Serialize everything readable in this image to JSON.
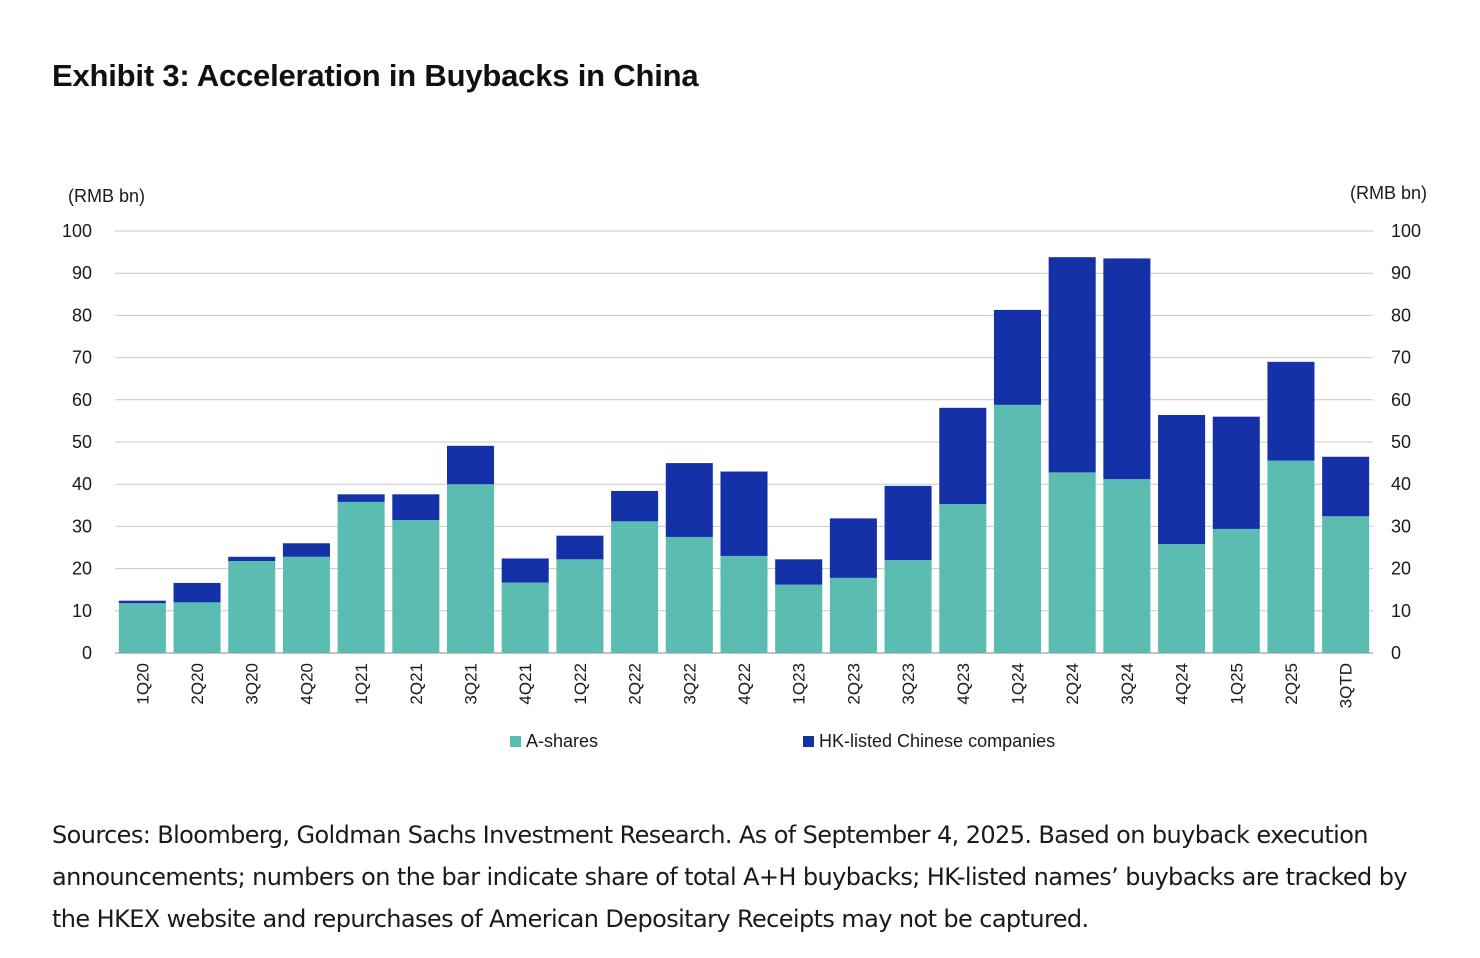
{
  "title": "Exhibit 3: Acceleration in Buybacks in China",
  "footnote": "Sources: Bloomberg, Goldman Sachs Investment Research. As of September 4, 2025. Based on buyback execution announcements; numbers on the bar indicate share of total A+H buybacks; HK-listed names’ buybacks are tracked by the HKEX website and repurchases of American Depositary Receipts may not be captured.",
  "chart_data": {
    "type": "bar",
    "stacked": true,
    "categories": [
      "1Q20",
      "2Q20",
      "3Q20",
      "4Q20",
      "1Q21",
      "2Q21",
      "3Q21",
      "4Q21",
      "1Q22",
      "2Q22",
      "3Q22",
      "4Q22",
      "1Q23",
      "2Q23",
      "3Q23",
      "4Q23",
      "1Q24",
      "2Q24",
      "3Q24",
      "4Q24",
      "1Q25",
      "2Q25",
      "3QTD"
    ],
    "series": [
      {
        "name": "A-shares",
        "color": "#5bbdb2",
        "values": [
          11.8,
          12.0,
          21.8,
          22.8,
          35.8,
          31.5,
          40.0,
          16.7,
          22.2,
          31.2,
          27.5,
          23.0,
          16.2,
          17.8,
          22.0,
          35.3,
          58.8,
          42.8,
          41.2,
          25.8,
          29.4,
          45.6,
          32.4
        ]
      },
      {
        "name": "HK-listed Chinese companies",
        "color": "#1531a8",
        "values": [
          0.6,
          4.6,
          1.0,
          3.2,
          1.8,
          6.1,
          9.1,
          5.7,
          5.6,
          7.2,
          17.5,
          20.0,
          6.0,
          14.1,
          17.6,
          22.8,
          22.5,
          51.0,
          52.3,
          30.6,
          26.6,
          23.4,
          14.1
        ]
      }
    ],
    "y_left": {
      "label": "(RMB bn)",
      "ticks": [
        0,
        10,
        20,
        30,
        40,
        50,
        60,
        70,
        80,
        90,
        100
      ]
    },
    "y_right": {
      "label": "(RMB bn)",
      "ticks": [
        0,
        10,
        20,
        30,
        40,
        50,
        60,
        70,
        80,
        90,
        100
      ]
    },
    "ylim": [
      0,
      100
    ],
    "grid": true,
    "legend_position": "bottom"
  }
}
